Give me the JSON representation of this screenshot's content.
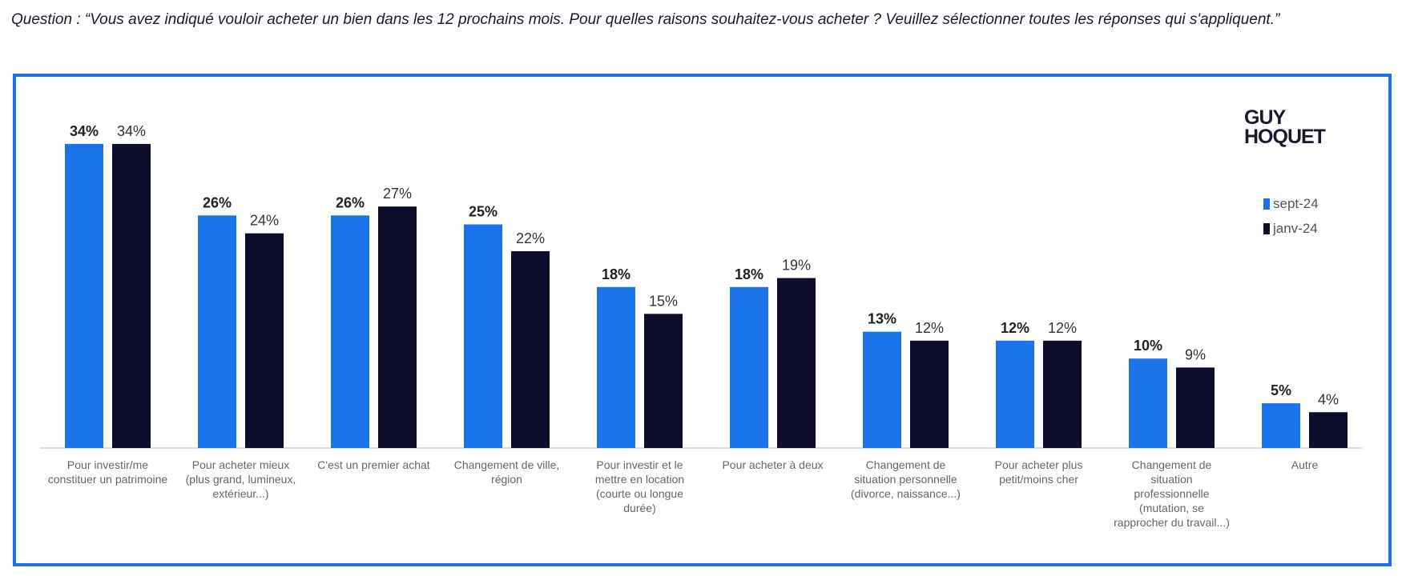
{
  "question": "Question : “Vous avez indiqué vouloir acheter un bien dans les 12 prochains mois. Pour quelles raisons souhaitez-vous acheter ? Veuillez sélectionner toutes les réponses qui s'appliquent.”",
  "logo": {
    "line1": "GUY",
    "line2": "HOQUET"
  },
  "colors": {
    "sept": "#1a73e8",
    "janv": "#0d0d2b",
    "frame": "#1a73e8"
  },
  "chart_data": {
    "type": "bar",
    "title": "",
    "xlabel": "",
    "ylabel": "",
    "ylim": [
      0,
      36
    ],
    "legend_position": "right",
    "categories": [
      "Pour investir/me constituer un patrimoine",
      "Pour acheter mieux (plus grand, lumineux, extérieur...)",
      "C'est un premier achat",
      "Changement de ville, région",
      "Pour investir et le mettre en location (courte ou longue durée)",
      "Pour acheter à deux",
      "Changement de situation personnelle (divorce, naissance...)",
      "Pour acheter plus petit/moins cher",
      "Changement de situation professionnelle (mutation, se rapprocher du travail...)",
      "Autre"
    ],
    "series": [
      {
        "name": "sept-24",
        "values": [
          34,
          26,
          26,
          25,
          18,
          18,
          13,
          12,
          10,
          5
        ]
      },
      {
        "name": "janv-24",
        "values": [
          34,
          24,
          27,
          22,
          15,
          19,
          12,
          12,
          9,
          4
        ]
      }
    ],
    "value_suffix": "%"
  }
}
